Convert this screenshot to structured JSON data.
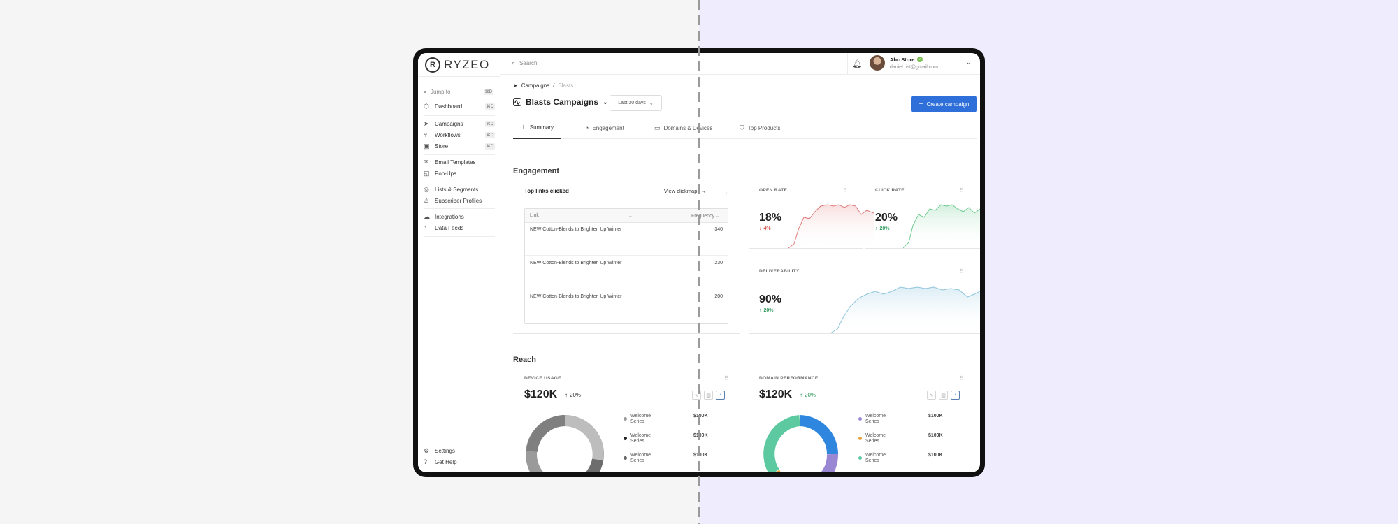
{
  "brand": {
    "name": "RYZEO",
    "mark": "R"
  },
  "sidebar": {
    "jump": {
      "label": "Jump to",
      "shortcut": "⌘D"
    },
    "groups": [
      [
        {
          "label": "Dashboard",
          "shortcut": "⌘D",
          "icon": "dashboard-icon"
        }
      ],
      [
        {
          "label": "Campaigns",
          "shortcut": "⌘D",
          "icon": "send-icon"
        },
        {
          "label": "Workflows",
          "shortcut": "⌘D",
          "icon": "workflow-icon"
        },
        {
          "label": "Store",
          "shortcut": "⌘D",
          "icon": "store-icon"
        }
      ],
      [
        {
          "label": "Email Templates",
          "icon": "mail-icon"
        },
        {
          "label": "Pop-Ups",
          "icon": "popup-icon"
        }
      ],
      [
        {
          "label": "Lists & Segments",
          "icon": "lists-icon"
        },
        {
          "label": "Subscriber Profiles",
          "icon": "user-icon"
        }
      ],
      [
        {
          "label": "Integrations",
          "icon": "cloud-icon"
        },
        {
          "label": "Data Feeds",
          "icon": "rss-icon"
        }
      ]
    ],
    "footer": [
      {
        "label": "Settings",
        "icon": "gear-icon"
      },
      {
        "label": "Get Help",
        "icon": "help-icon"
      }
    ]
  },
  "topbar": {
    "search_placeholder": "Search",
    "user": {
      "name": "Abc Store",
      "email": "daniel.rist@gmail.com"
    }
  },
  "header": {
    "breadcrumb": {
      "parent": "Campaigns",
      "sep": "/",
      "current": "Blasts"
    },
    "title": "Blasts Campaigns",
    "date_range": "Last 30 days",
    "create_label": "Create campaign"
  },
  "tabs": [
    {
      "label": "Summary",
      "icon": "bar-chart-icon",
      "active": true
    },
    {
      "label": "Engagement",
      "icon": "engagement-icon",
      "active": false
    },
    {
      "label": "Domains & Devices",
      "icon": "monitor-icon",
      "active": false
    },
    {
      "label": "Top Products",
      "icon": "bag-icon",
      "active": false
    }
  ],
  "engagement": {
    "title": "Engagement",
    "top_links": {
      "title": "Top links clicked",
      "view_label": "View clickmap",
      "columns": [
        "Link",
        "Frequency"
      ],
      "rows": [
        {
          "link": "NEW Cotton-Blends to Brighten Up Winter",
          "freq": "340"
        },
        {
          "link": "NEW Cotton-Blends to Brighten Up Winter",
          "freq": "230"
        },
        {
          "link": "NEW Cotton-Blends to Brighten Up Winter",
          "freq": "200"
        }
      ]
    },
    "metrics": {
      "open_rate": {
        "label": "OPEN RATE",
        "value": "18%",
        "delta": "4%",
        "direction": "down",
        "color": "#e07b7b"
      },
      "click_rate": {
        "label": "CLICK RATE",
        "value": "20%",
        "delta": "20%",
        "direction": "up",
        "color": "#6cc98f"
      },
      "deliverability": {
        "label": "DELIVERABILITY",
        "value": "90%",
        "delta": "20%",
        "direction": "up",
        "color": "#8ec5db"
      }
    }
  },
  "reach": {
    "title": "Reach",
    "device_usage": {
      "label": "DEVICE USAGE",
      "value": "$120K",
      "delta": "20%",
      "legend": [
        {
          "name": "Welcome Series",
          "value": "$100K",
          "color": "#9a9a9a"
        },
        {
          "name": "Welcome Series",
          "value": "$100K",
          "color": "#222222"
        },
        {
          "name": "Welcome Series",
          "value": "$100K",
          "color": "#666666"
        }
      ]
    },
    "domain_performance": {
      "label": "DOMAIN PERFORMANCE",
      "value": "$120K",
      "delta": "20%",
      "legend": [
        {
          "name": "Welcome Series",
          "value": "$100K",
          "color": "#9a87d4"
        },
        {
          "name": "Welcome Series",
          "value": "$100K",
          "color": "#e9a23b"
        },
        {
          "name": "Welcome Series",
          "value": "$100K",
          "color": "#5cc9a0"
        }
      ]
    }
  }
}
